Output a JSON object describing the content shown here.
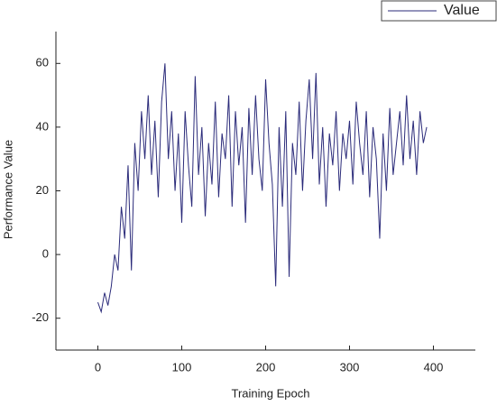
{
  "chart_data": {
    "type": "line",
    "x_label": "Training Epoch",
    "y_label": "Performance Value",
    "x": [
      0,
      4,
      8,
      12,
      16,
      20,
      24,
      28,
      32,
      36,
      40,
      44,
      48,
      52,
      56,
      60,
      64,
      68,
      72,
      76,
      80,
      84,
      88,
      92,
      96,
      100,
      104,
      108,
      112,
      116,
      120,
      124,
      128,
      132,
      136,
      140,
      144,
      148,
      152,
      156,
      160,
      164,
      168,
      172,
      176,
      180,
      184,
      188,
      192,
      196,
      200,
      204,
      208,
      212,
      216,
      220,
      224,
      228,
      232,
      236,
      240,
      244,
      248,
      252,
      256,
      260,
      264,
      268,
      272,
      276,
      280,
      284,
      288,
      292,
      296,
      300,
      304,
      308,
      312,
      316,
      320,
      324,
      328,
      332,
      336,
      340,
      344,
      348,
      352,
      356,
      360,
      364,
      368,
      372,
      376,
      380,
      384,
      388,
      392
    ],
    "series": [
      {
        "name": "Value",
        "color": "#2b2b7a",
        "values": [
          -15,
          -18,
          -12,
          -16,
          -10,
          0,
          -5,
          15,
          5,
          28,
          -5,
          35,
          20,
          45,
          30,
          50,
          25,
          42,
          18,
          48,
          60,
          30,
          45,
          20,
          38,
          10,
          45,
          28,
          15,
          56,
          25,
          40,
          12,
          35,
          22,
          48,
          18,
          38,
          30,
          50,
          15,
          45,
          28,
          40,
          10,
          46,
          25,
          50,
          30,
          20,
          55,
          35,
          22,
          -10,
          40,
          15,
          45,
          -7,
          35,
          25,
          48,
          20,
          42,
          55,
          30,
          57,
          22,
          40,
          15,
          38,
          28,
          45,
          20,
          38,
          30,
          42,
          22,
          48,
          35,
          25,
          45,
          18,
          40,
          30,
          5,
          38,
          20,
          46,
          25,
          35,
          45,
          28,
          50,
          30,
          42,
          25,
          45,
          35,
          40
        ]
      }
    ],
    "xlim": [
      -50,
      450
    ],
    "ylim": [
      -30,
      70
    ],
    "xticks": [
      0,
      100,
      200,
      300,
      400
    ],
    "yticks": [
      -20,
      0,
      20,
      40,
      60
    ],
    "legend": "top-right"
  }
}
